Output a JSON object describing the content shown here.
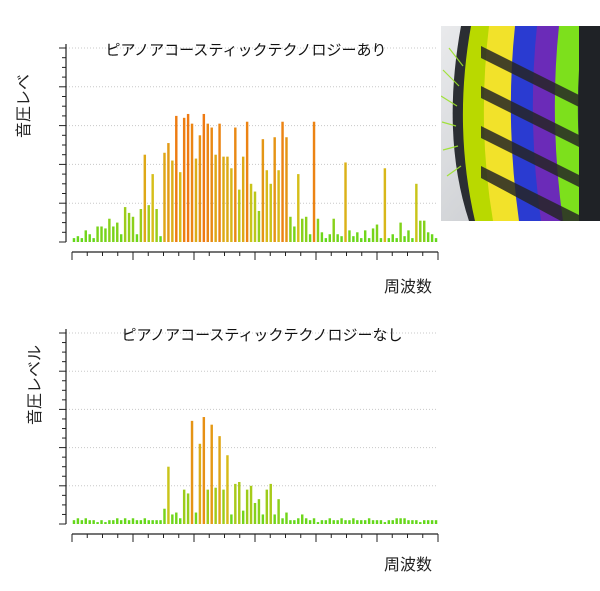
{
  "chart_data": [
    {
      "type": "bar",
      "title": "ピアノアコースティックテクノロジーあり",
      "xlabel": "周波数",
      "ylabel": "音圧レベ",
      "ylim": [
        0,
        10
      ],
      "grid": true,
      "values": [
        0.2,
        0.3,
        0.2,
        0.6,
        0.4,
        0.2,
        0.8,
        0.8,
        0.7,
        1.2,
        0.8,
        1.0,
        0.4,
        1.8,
        1.5,
        1.3,
        0.4,
        1.7,
        4.5,
        1.9,
        3.5,
        1.7,
        0.3,
        4.6,
        5.1,
        4.2,
        6.5,
        3.6,
        6.4,
        6.6,
        6.1,
        4.3,
        5.5,
        6.6,
        6.1,
        5.9,
        4.5,
        6.1,
        4.4,
        4.4,
        3.8,
        5.9,
        2.7,
        4.4,
        6.2,
        3.0,
        2.6,
        1.6,
        5.3,
        3.7,
        3.0,
        5.4,
        3.7,
        6.2,
        5.4,
        1.3,
        0.8,
        3.5,
        1.2,
        1.3,
        0.4,
        6.2,
        1.2,
        0.5,
        0.2,
        0.4,
        1.2,
        0.4,
        0.3,
        4.1,
        0.6,
        0.3,
        0.5,
        0.2,
        0.6,
        0.2,
        0.7,
        0.9,
        0.2,
        3.8,
        0.2,
        0.4,
        0.2,
        1.0,
        0.3,
        0.6,
        0.2,
        3.0,
        1.1,
        1.1,
        0.5,
        0.4,
        0.2
      ]
    },
    {
      "type": "bar",
      "title": "ピアノアコースティックテクノロジーなし",
      "xlabel": "周波数",
      "ylabel": "音圧レベル",
      "ylim": [
        0,
        10
      ],
      "grid": true,
      "values": [
        0.2,
        0.3,
        0.2,
        0.3,
        0.2,
        0.2,
        0.1,
        0.2,
        0.1,
        0.2,
        0.2,
        0.3,
        0.2,
        0.3,
        0.2,
        0.3,
        0.2,
        0.2,
        0.3,
        0.2,
        0.2,
        0.2,
        0.2,
        0.8,
        3.0,
        0.5,
        0.6,
        0.3,
        1.8,
        1.6,
        5.4,
        0.6,
        4.2,
        5.6,
        1.8,
        5.2,
        1.9,
        4.6,
        1.8,
        3.6,
        0.5,
        2.1,
        2.2,
        0.7,
        1.8,
        2.0,
        1.1,
        1.3,
        0.5,
        1.8,
        2.1,
        0.5,
        1.3,
        0.3,
        0.6,
        0.2,
        0.2,
        0.3,
        0.5,
        0.3,
        0.2,
        0.3,
        0.1,
        0.2,
        0.2,
        0.3,
        0.2,
        0.2,
        0.3,
        0.2,
        0.2,
        0.3,
        0.2,
        0.2,
        0.2,
        0.3,
        0.2,
        0.2,
        0.2,
        0.1,
        0.2,
        0.2,
        0.3,
        0.3,
        0.3,
        0.2,
        0.2,
        0.2,
        0.1,
        0.2,
        0.2,
        0.2,
        0.2
      ]
    }
  ],
  "colors": {
    "bar_low": "#5cd91a",
    "bar_mid": "#d4c21a",
    "bar_high": "#ef7a12",
    "grid": "#c8c8c8",
    "axis": "#222222"
  },
  "image": {
    "label": "tire-photo"
  }
}
